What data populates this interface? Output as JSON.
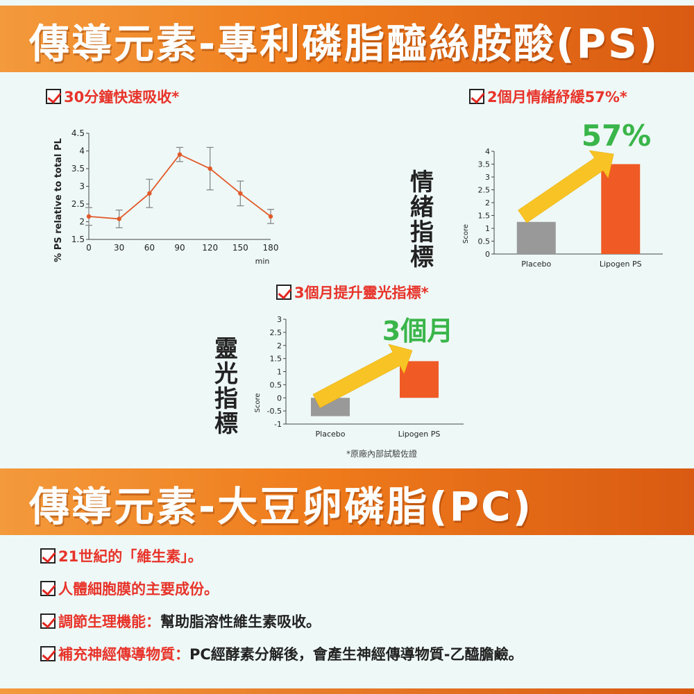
{
  "banner_top": {
    "title": "傳導元素-專利磷脂醯絲胺酸(PS)"
  },
  "banner_bottom": {
    "title": "傳導元素-大豆卵磷脂(PC)"
  },
  "checks_top": {
    "absorb": "30分鐘快速吸收*",
    "mood": "2個月情緒紓緩57%*",
    "spirit": "3個月提升靈光指標*"
  },
  "note": "*原廠內部試驗佐證",
  "chart_labels": {
    "mood_side": "情緒指標",
    "spirit_side": "靈光指標",
    "score": "Score",
    "mood_callout": "57%",
    "spirit_callout": "3個月"
  },
  "list": [
    {
      "red": "21世紀的「維生素」。",
      "dark": ""
    },
    {
      "red": "人體細胞膜的主要成份。",
      "dark": ""
    },
    {
      "red": "調節生理機能：",
      "dark": "幫助脂溶性維生素吸收。"
    },
    {
      "red": "補充神經傳導物質：",
      "dark": "PC經酵素分解後，會產生神經傳導物質-乙醯膽鹼。"
    }
  ],
  "colors": {
    "orange": "#ef7c1c",
    "red": "#e8332a",
    "bar_orange": "#f05a24",
    "bar_gray": "#999999",
    "green": "#3ab54a",
    "arrow": "#f7c325"
  },
  "chart_data": [
    {
      "type": "line",
      "title": "",
      "xlabel": "min",
      "ylabel": "% PS relative to total PL",
      "x": [
        0,
        30,
        60,
        90,
        120,
        150,
        180
      ],
      "xticks": [
        "0",
        "30",
        "60",
        "90",
        "120",
        "150",
        "180"
      ],
      "yticks": [
        "1.5",
        "2",
        "2.5",
        "3",
        "3.5",
        "4",
        "4.5"
      ],
      "series": [
        {
          "values": [
            2.15,
            2.08,
            2.8,
            3.9,
            3.5,
            2.8,
            2.15
          ],
          "errors": [
            0.25,
            0.25,
            0.4,
            0.2,
            0.6,
            0.35,
            0.2
          ]
        }
      ],
      "ylim": [
        1.5,
        4.5
      ],
      "xlim": [
        0,
        180
      ]
    },
    {
      "type": "bar",
      "title": "",
      "ylabel": "Score",
      "categories": [
        "Placebo",
        "Lipogen PS"
      ],
      "values": [
        1.25,
        3.5
      ],
      "yticks": [
        "0",
        "0.5",
        "1",
        "1.5",
        "2",
        "2.5",
        "3",
        "3.5",
        "4"
      ],
      "ylim": [
        0,
        4
      ]
    },
    {
      "type": "bar",
      "title": "",
      "ylabel": "Score",
      "categories": [
        "Placebo",
        "Lipogen PS"
      ],
      "values": [
        -0.7,
        1.4
      ],
      "yticks": [
        "-1",
        "-0.5",
        "0",
        "0.5",
        "1",
        "1.5",
        "2",
        "2.5",
        "3"
      ],
      "ylim": [
        -1,
        3
      ]
    }
  ]
}
